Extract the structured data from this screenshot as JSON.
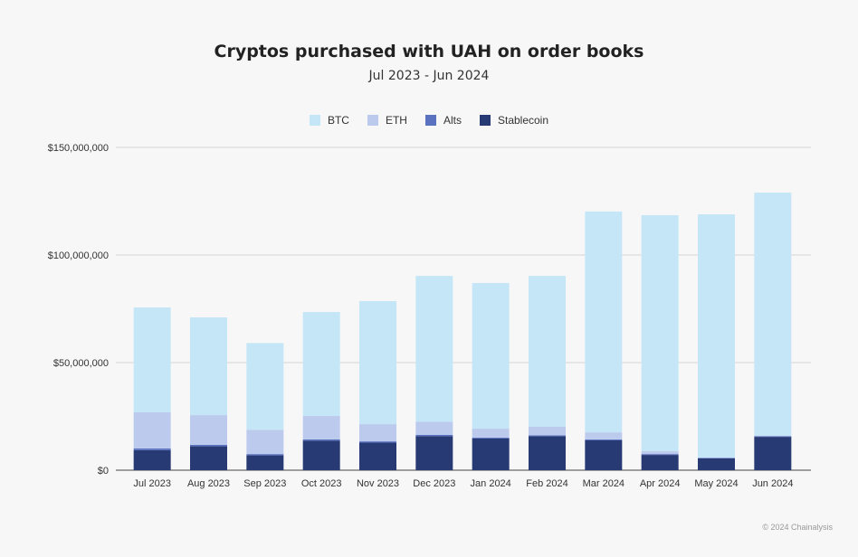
{
  "chart_data": {
    "type": "bar",
    "stacked": true,
    "title": "Cryptos purchased with UAH on order books",
    "subtitle": "Jul 2023 - Jun 2024",
    "xlabel": "",
    "ylabel": "",
    "ylim": [
      0,
      150000000
    ],
    "yticks": [
      0,
      50000000,
      100000000,
      150000000
    ],
    "ytick_labels": [
      "$0",
      "$50,000,000",
      "$100,000,000",
      "$150,000,000"
    ],
    "grid": true,
    "legend": "top",
    "categories": [
      "Jul 2023",
      "Aug 2023",
      "Sep 2023",
      "Oct 2023",
      "Nov 2023",
      "Dec 2023",
      "Jan 2024",
      "Feb 2024",
      "Mar 2024",
      "Apr 2024",
      "May 2024",
      "Jun 2024"
    ],
    "series": [
      {
        "name": "Stablecoin",
        "color": "#283a73",
        "values": [
          9300000,
          11100000,
          6900000,
          13700000,
          12800000,
          15800000,
          14700000,
          15800000,
          13900000,
          7100000,
          5500000,
          15500000
        ]
      },
      {
        "name": "Alts",
        "color": "#5a72c0",
        "values": [
          800000,
          700000,
          600000,
          600000,
          600000,
          600000,
          400000,
          400000,
          400000,
          400000,
          200000,
          300000
        ]
      },
      {
        "name": "ETH",
        "color": "#bccbed",
        "values": [
          16800000,
          13800000,
          11300000,
          10900000,
          8000000,
          6100000,
          4200000,
          4000000,
          3300000,
          1300000,
          200000,
          300000
        ]
      },
      {
        "name": "BTC",
        "color": "#c5e6f6",
        "values": [
          48700000,
          45400000,
          40300000,
          48300000,
          57200000,
          67800000,
          67700000,
          70100000,
          102600000,
          109700000,
          113000000,
          112900000
        ]
      }
    ],
    "legend_order": [
      "BTC",
      "ETH",
      "Alts",
      "Stablecoin"
    ]
  },
  "credit": "© 2024 Chainalysis"
}
